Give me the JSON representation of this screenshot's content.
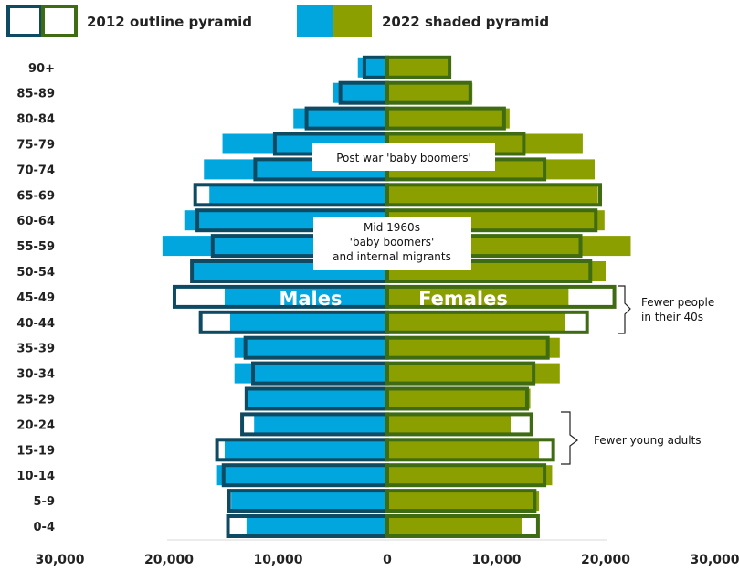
{
  "legend": {
    "outline_label": "2012 outline pyramid",
    "shaded_label": "2022 shaded pyramid"
  },
  "colors": {
    "males_2022": "#00a6dd",
    "females_2022": "#8c9f00",
    "males_2012_outline": "#0e4b63",
    "females_2012_outline": "#3f6b12",
    "axis": "#d9d9d9",
    "text": "#222222"
  },
  "chart_data": {
    "type": "bar",
    "orientation": "horizontal",
    "subtype": "population-pyramid",
    "categories": [
      "0-4",
      "5-9",
      "10-14",
      "15-19",
      "20-24",
      "25-29",
      "30-34",
      "35-39",
      "40-44",
      "45-49",
      "50-54",
      "55-59",
      "60-64",
      "65-69",
      "70-74",
      "75-79",
      "80-84",
      "85-89",
      "90+"
    ],
    "xlim": [
      -30000,
      30000
    ],
    "x_ticks": [
      "30,000",
      "20,000",
      "10,000",
      "0",
      "10,000",
      "20,000",
      "30,000"
    ],
    "series": [
      {
        "name": "Males",
        "year": 2022,
        "side": "left",
        "style": "shaded",
        "values": [
          12900,
          14300,
          15600,
          14900,
          12200,
          12900,
          14000,
          14000,
          14400,
          14900,
          18000,
          20600,
          18600,
          16300,
          16800,
          15100,
          8600,
          5000,
          2700
        ]
      },
      {
        "name": "Females",
        "year": 2022,
        "side": "right",
        "style": "shaded",
        "values": [
          12300,
          13900,
          15100,
          13900,
          11300,
          13100,
          15800,
          15800,
          16300,
          16600,
          20000,
          22300,
          19900,
          19300,
          19000,
          17900,
          11200,
          7800,
          5700
        ]
      },
      {
        "name": "Males",
        "year": 2012,
        "side": "left",
        "style": "outline",
        "values": [
          14600,
          14500,
          15000,
          15600,
          13300,
          12900,
          12300,
          13000,
          17100,
          19500,
          17900,
          16000,
          17400,
          17600,
          12100,
          10300,
          7400,
          4300,
          2100
        ]
      },
      {
        "name": "Females",
        "year": 2012,
        "side": "right",
        "style": "outline",
        "values": [
          13800,
          13500,
          14400,
          15200,
          13200,
          12800,
          13400,
          14700,
          18300,
          20800,
          18600,
          17700,
          19100,
          19500,
          14400,
          12500,
          10700,
          7600,
          5700
        ]
      }
    ],
    "side_labels": {
      "left": "Males",
      "right": "Females"
    },
    "annotations": [
      {
        "text": "Post war 'baby boomers'",
        "type": "box"
      },
      {
        "text": "Mid 1960s\n'baby boomers'\nand internal migrants",
        "type": "box"
      },
      {
        "text": "Fewer people\nin their 40s",
        "type": "bracket",
        "ages": [
          "40-44",
          "45-49"
        ]
      },
      {
        "text": "Fewer young adults",
        "type": "bracket",
        "ages": [
          "15-19",
          "20-24"
        ]
      }
    ]
  }
}
